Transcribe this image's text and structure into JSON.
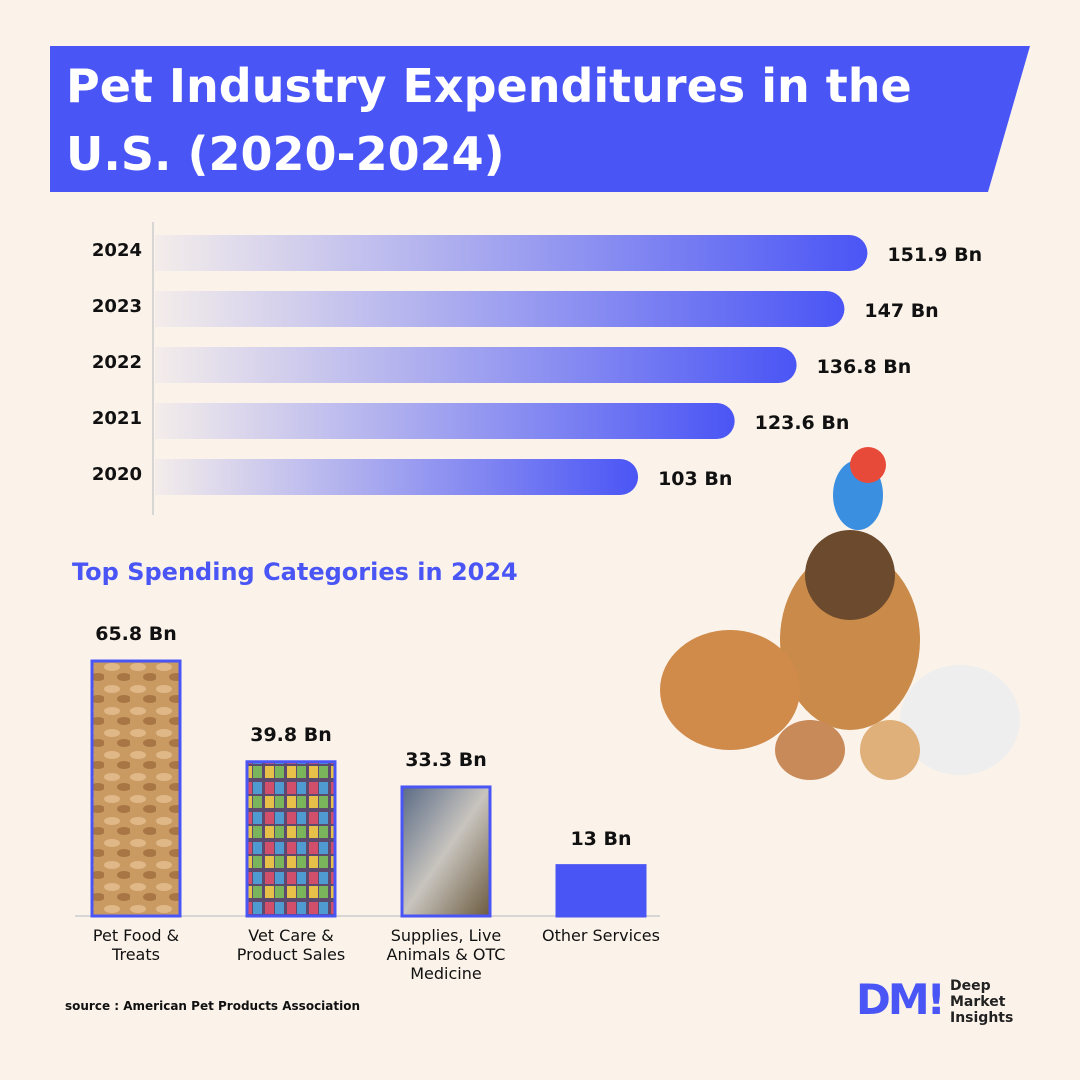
{
  "title": "Pet Industry Expenditures in the U.S. (2020-2024)",
  "chart_data": [
    {
      "type": "hbar",
      "categories": [
        "2024",
        "2023",
        "2022",
        "2021",
        "2020"
      ],
      "values": [
        151.9,
        147,
        136.8,
        123.6,
        103
      ],
      "value_labels": [
        "151.9 Bn",
        "147 Bn",
        "136.8 Bn",
        "123.6 Bn",
        "103 Bn"
      ],
      "color": "#4a55f5"
    },
    {
      "type": "bar",
      "title": "Top Spending Categories in 2024",
      "categories": [
        "Pet Food & Treats",
        "Vet Care & Product Sales",
        "Supplies, Live Animals & OTC Medicine",
        "Other Services"
      ],
      "values": [
        65.8,
        39.8,
        33.3,
        13
      ],
      "value_labels": [
        "65.8 Bn",
        "39.8 Bn",
        "33.3 Bn",
        "13 Bn"
      ],
      "color": "#4a55f5"
    }
  ],
  "source": "source : American Pet Products Association",
  "logo": {
    "mark": "DM!",
    "name": "Deep Market Insights"
  }
}
